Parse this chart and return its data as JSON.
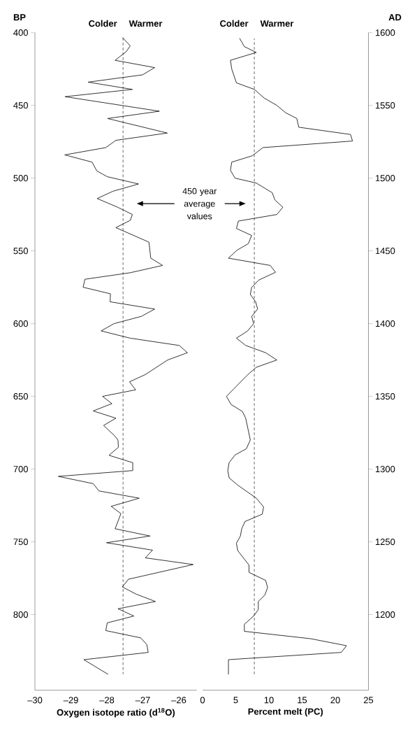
{
  "chart_data": [
    {
      "type": "line",
      "orientation": "horizontal",
      "xlabel": "Oxygen isotope ratio (d$^{18}$O)",
      "ylabel": "BP",
      "xlim": [
        -30,
        -25.5
      ],
      "xticks": [
        {
          "value": -30,
          "label": "–30"
        },
        {
          "value": -29,
          "label": "–29"
        },
        {
          "value": -28,
          "label": "–28"
        },
        {
          "value": -27,
          "label": "–27"
        },
        {
          "value": -26,
          "label": "–26"
        }
      ],
      "ylim": [
        852,
        400
      ],
      "yticks": [
        400,
        450,
        500,
        550,
        600,
        650,
        700,
        750,
        800
      ],
      "series": [
        {
          "color": "#000000",
          "x": [
            403.5,
            409,
            413,
            419,
            424,
            429,
            434,
            439,
            444,
            454,
            459,
            469,
            474,
            479,
            484,
            489,
            495,
            499,
            504,
            509,
            514,
            520,
            525,
            529,
            534,
            544,
            555,
            560,
            565,
            569.5,
            575,
            579.5,
            585,
            590,
            595,
            600,
            605,
            610,
            615,
            620,
            625,
            635,
            640,
            645.5,
            650,
            655,
            660,
            665,
            670,
            677,
            680,
            685,
            690.5,
            695.6,
            701,
            705,
            710,
            715,
            720,
            725.6,
            730.6,
            741,
            746,
            750.6,
            755.7,
            761,
            765.6,
            775.7,
            781,
            786,
            791,
            796,
            801,
            805.7,
            811,
            816,
            820.6,
            826,
            831,
            841
          ],
          "values": [
            -27.56,
            -27.35,
            -27.46,
            -27.77,
            -26.67,
            -27.01,
            -28.52,
            -27.29,
            -29.16,
            -26.54,
            -27.98,
            -26.32,
            -27.75,
            -28.03,
            -29.17,
            -28.41,
            -28.28,
            -27.99,
            -27.12,
            -27.83,
            -28.27,
            -27.7,
            -27.29,
            -27.35,
            -27.75,
            -26.83,
            -26.78,
            -26.45,
            -27.35,
            -28.61,
            -28.66,
            -27.9,
            -27.91,
            -26.67,
            -27.04,
            -27.8,
            -28.16,
            -27.35,
            -25.99,
            -25.76,
            -26.31,
            -26.93,
            -27.37,
            -27.2,
            -28.12,
            -27.86,
            -28.38,
            -27.75,
            -28.09,
            -27.79,
            -27.69,
            -27.68,
            -27.94,
            -27.28,
            -27.28,
            -29.35,
            -28.38,
            -28.22,
            -27.1,
            -27.88,
            -27.61,
            -27.77,
            -26.8,
            -28.01,
            -26.73,
            -26.93,
            -25.6,
            -27.4,
            -27.57,
            -27.18,
            -26.65,
            -27.69,
            -27.25,
            -27.99,
            -28.03,
            -27.06,
            -26.89,
            -26.85,
            -28.64,
            -27.97
          ]
        }
      ],
      "ref_lines": [
        {
          "axis": "x",
          "value": -27.55,
          "line_style": "dashed",
          "color": "#000000"
        }
      ],
      "annotations": [
        "Colder",
        "Warmer",
        "450 year average values"
      ]
    },
    {
      "type": "line",
      "orientation": "horizontal",
      "xlabel": "Percent melt (PC)",
      "ylabel": "AD",
      "xlim": [
        0,
        25
      ],
      "xticks": [
        0,
        5,
        10,
        15,
        20,
        25
      ],
      "ylim": [
        1148,
        1600
      ],
      "yticks": [
        1200,
        1250,
        1300,
        1350,
        1400,
        1450,
        1500,
        1550,
        1600
      ],
      "series": [
        {
          "color": "#000000",
          "x": [
            1596,
            1590.4,
            1586.4,
            1581,
            1575,
            1565.5,
            1561,
            1555,
            1550,
            1545,
            1541,
            1535,
            1530,
            1525.5,
            1521,
            1515.4,
            1511,
            1505.4,
            1500,
            1496.6,
            1490,
            1485,
            1480,
            1475,
            1470.5,
            1465.4,
            1460.6,
            1455,
            1450.5,
            1445,
            1440,
            1435.3,
            1430,
            1425,
            1420,
            1415,
            1410,
            1405,
            1400,
            1395,
            1390,
            1385,
            1380,
            1375,
            1370,
            1364.4,
            1350,
            1344.4,
            1339.6,
            1335,
            1320,
            1314,
            1309.7,
            1304.4,
            1299,
            1294,
            1289,
            1280,
            1274,
            1269,
            1264,
            1259,
            1254,
            1249,
            1244,
            1234,
            1229,
            1223.5,
            1218.6,
            1213.5,
            1209,
            1203.4,
            1199,
            1193.3,
            1188.5,
            1183.4,
            1178.6,
            1174,
            1169,
            1159
          ],
          "values": [
            5.6,
            6.3,
            8.1,
            4.2,
            4.4,
            5.1,
            7.8,
            9.3,
            11.2,
            12.5,
            14.2,
            14.5,
            22.3,
            22.6,
            9.1,
            7.5,
            4.4,
            4.2,
            4.9,
            8.1,
            10.5,
            10.9,
            12.1,
            11.2,
            5.4,
            5.1,
            7.4,
            6.9,
            5.2,
            3.9,
            10.2,
            11.0,
            8.5,
            7.4,
            7.2,
            8.0,
            8.3,
            7.4,
            7.7,
            6.8,
            5.1,
            6.5,
            9.5,
            11.2,
            8.1,
            6.7,
            3.6,
            4.3,
            6.0,
            6.5,
            7.2,
            6.6,
            4.9,
            4.0,
            3.8,
            4.0,
            5.3,
            8.1,
            9.2,
            9.0,
            6.4,
            5.9,
            5.7,
            5.1,
            5.3,
            7.0,
            7.0,
            9.5,
            9.8,
            9.4,
            8.4,
            8.4,
            7.7,
            6.3,
            6.3,
            16.3,
            21.7,
            20.9,
            3.9,
            3.9
          ]
        }
      ],
      "ref_lines": [
        {
          "axis": "x",
          "value": 7.8,
          "line_style": "dashed",
          "color": "#000000"
        }
      ],
      "annotations": [
        "Colder",
        "Warmer"
      ]
    }
  ]
}
